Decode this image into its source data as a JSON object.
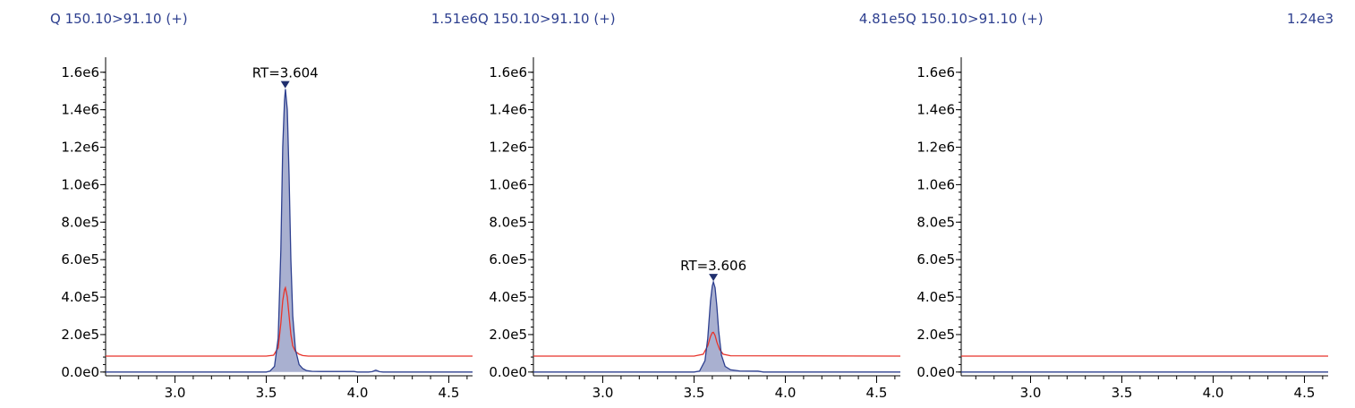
{
  "colors": {
    "trace": "#2d3f8f",
    "fill": "#a9b0d0",
    "threshold": "#e8332a",
    "marker": "#1f2f6e",
    "header": "#2d3f8f"
  },
  "chart_data": [
    {
      "type": "line",
      "title": "Q 150.10>91.10 (+)",
      "max_label": "1.51e6",
      "xlim": [
        2.62,
        4.63
      ],
      "ylim": [
        -20000,
        1680000
      ],
      "x_ticks": [
        3.0,
        3.5,
        4.0,
        4.5
      ],
      "x_tick_labels": [
        "3.0",
        "3.5",
        "4.0",
        "4.5"
      ],
      "y_ticks": [
        0,
        200000,
        400000,
        600000,
        800000,
        1000000,
        1200000,
        1400000,
        1600000
      ],
      "y_tick_labels": [
        "0.0e0",
        "2.0e5",
        "4.0e5",
        "6.0e5",
        "8.0e5",
        "1.0e6",
        "1.2e6",
        "1.4e6",
        "1.6e6"
      ],
      "threshold": 85000,
      "series": [
        {
          "x": [
            2.62,
            3.5,
            3.52,
            3.545,
            3.565,
            3.58,
            3.59,
            3.6,
            3.605,
            3.615,
            3.625,
            3.635,
            3.645,
            3.66,
            3.68,
            3.7,
            3.72,
            3.75,
            3.8,
            3.9,
            3.98,
            4.0,
            4.06,
            4.08,
            4.1,
            4.12,
            4.14,
            4.63
          ],
          "y": [
            0,
            0,
            5000,
            30000,
            180000,
            650000,
            1200000,
            1450000,
            1510000,
            1400000,
            1050000,
            600000,
            300000,
            120000,
            40000,
            18000,
            8000,
            4000,
            3000,
            3000,
            3000,
            0,
            0,
            2000,
            10000,
            2000,
            0,
            0
          ]
        },
        {
          "x": [
            2.62,
            3.5,
            3.54,
            3.565,
            3.58,
            3.59,
            3.6,
            3.605,
            3.615,
            3.625,
            3.635,
            3.645,
            3.66,
            3.68,
            3.7,
            3.73,
            4.63
          ],
          "y": [
            85000,
            85000,
            90000,
            130000,
            260000,
            380000,
            440000,
            450000,
            400000,
            300000,
            200000,
            140000,
            110000,
            95000,
            88000,
            85000,
            85000
          ]
        }
      ],
      "peak": {
        "x": 3.604,
        "y": 1510000,
        "label": "RT=3.604"
      }
    },
    {
      "type": "line",
      "title": "Q 150.10>91.10 (+)",
      "max_label": "4.81e5",
      "xlim": [
        2.62,
        4.63
      ],
      "ylim": [
        -20000,
        1680000
      ],
      "x_ticks": [
        3.0,
        3.5,
        4.0,
        4.5
      ],
      "x_tick_labels": [
        "3.0",
        "3.5",
        "4.0",
        "4.5"
      ],
      "y_ticks": [
        0,
        200000,
        400000,
        600000,
        800000,
        1000000,
        1200000,
        1400000,
        1600000
      ],
      "y_tick_labels": [
        "0.0e0",
        "2.0e5",
        "4.0e5",
        "6.0e5",
        "8.0e5",
        "1.0e6",
        "1.2e6",
        "1.4e6",
        "1.6e6"
      ],
      "threshold": 85000,
      "series": [
        {
          "x": [
            2.62,
            3.5,
            3.53,
            3.56,
            3.575,
            3.59,
            3.6,
            3.606,
            3.615,
            3.625,
            3.635,
            3.65,
            3.67,
            3.7,
            3.75,
            3.85,
            3.88,
            4.63
          ],
          "y": [
            0,
            0,
            5000,
            60000,
            180000,
            380000,
            460000,
            481000,
            450000,
            350000,
            220000,
            90000,
            30000,
            12000,
            6000,
            5000,
            0,
            0
          ]
        },
        {
          "x": [
            2.62,
            3.5,
            3.55,
            3.575,
            3.59,
            3.6,
            3.606,
            3.615,
            3.625,
            3.64,
            3.66,
            3.7,
            4.63
          ],
          "y": [
            85000,
            85000,
            95000,
            140000,
            190000,
            210000,
            212000,
            195000,
            160000,
            120000,
            95000,
            87000,
            85000
          ]
        }
      ],
      "peak": {
        "x": 3.606,
        "y": 481000,
        "label": "RT=3.606"
      }
    },
    {
      "type": "line",
      "title": "Q 150.10>91.10 (+)",
      "max_label": "1.24e3",
      "xlim": [
        2.62,
        4.63
      ],
      "ylim": [
        -20000,
        1680000
      ],
      "x_ticks": [
        3.0,
        3.5,
        4.0,
        4.5
      ],
      "x_tick_labels": [
        "3.0",
        "3.5",
        "4.0",
        "4.5"
      ],
      "y_ticks": [
        0,
        200000,
        400000,
        600000,
        800000,
        1000000,
        1200000,
        1400000,
        1600000
      ],
      "y_tick_labels": [
        "0.0e0",
        "2.0e5",
        "4.0e5",
        "6.0e5",
        "8.0e5",
        "1.0e6",
        "1.2e6",
        "1.4e6",
        "1.6e6"
      ],
      "threshold": 85000,
      "series": [
        {
          "x": [
            2.62,
            4.63
          ],
          "y": [
            0,
            0
          ]
        },
        {
          "x": [
            2.62,
            4.63
          ],
          "y": [
            85000,
            85000
          ]
        }
      ],
      "peak": null
    }
  ]
}
